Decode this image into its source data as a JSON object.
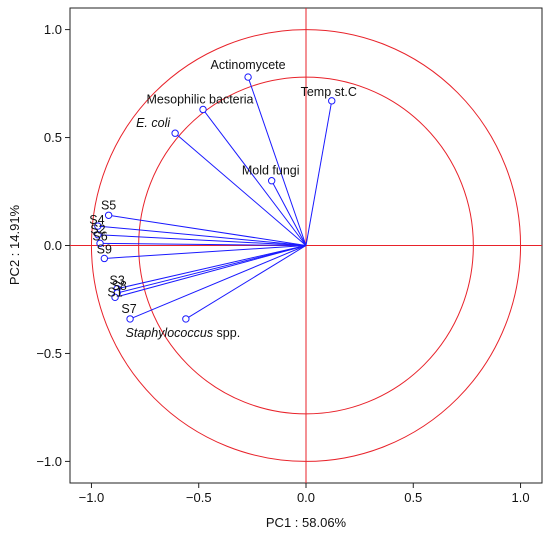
{
  "chart_data": {
    "type": "scatter",
    "subtype": "pca-correlation-circle",
    "xlabel": "PC1 : 58.06%",
    "ylabel": "PC2 : 14.91%",
    "xlim": [
      -1.1,
      1.1
    ],
    "ylim": [
      -1.1,
      1.1
    ],
    "x_ticks": [
      -1.0,
      -0.5,
      0.0,
      0.5,
      1.0
    ],
    "y_ticks": [
      1.0,
      0.5,
      0.0,
      -0.5,
      -1.0
    ],
    "x_tick_labels": [
      "−1.0",
      "−0.5",
      "0.0",
      "0.5",
      "1.0"
    ],
    "y_tick_labels": [
      "1.0",
      "0.5",
      "0.0",
      "−0.5",
      "−1.0"
    ],
    "grid": false,
    "circles": [
      {
        "radius": 1.0
      },
      {
        "radius": 0.78
      }
    ],
    "colors": {
      "vectors": "#1a1aff",
      "circles": "#e8222a",
      "reference_lines": "#e8222a",
      "text": "#111111"
    },
    "vectors": [
      {
        "label": "Actinomycete",
        "x": -0.27,
        "y": 0.78
      },
      {
        "label": "Temp st.C",
        "x": 0.12,
        "y": 0.67
      },
      {
        "label": "Mesophilic bacteria",
        "x": -0.48,
        "y": 0.63
      },
      {
        "label": "E. coli",
        "x": -0.61,
        "y": 0.52
      },
      {
        "label": "Mold fungi",
        "x": -0.16,
        "y": 0.3
      },
      {
        "label": "S5",
        "x": -0.92,
        "y": 0.14
      },
      {
        "label": "S4",
        "x": -0.97,
        "y": 0.09
      },
      {
        "label": "S2",
        "x": -0.97,
        "y": 0.05
      },
      {
        "label": "S6",
        "x": -0.96,
        "y": 0.01
      },
      {
        "label": "S9",
        "x": -0.94,
        "y": -0.06
      },
      {
        "label": "S3",
        "x": -0.88,
        "y": -0.2
      },
      {
        "label": "S8",
        "x": -0.88,
        "y": -0.22
      },
      {
        "label": "S1",
        "x": -0.89,
        "y": -0.24
      },
      {
        "label": "S7",
        "x": -0.82,
        "y": -0.34
      },
      {
        "label": "Staphylococcus",
        "label_suffix": " spp.",
        "x": -0.56,
        "y": -0.34
      }
    ]
  }
}
